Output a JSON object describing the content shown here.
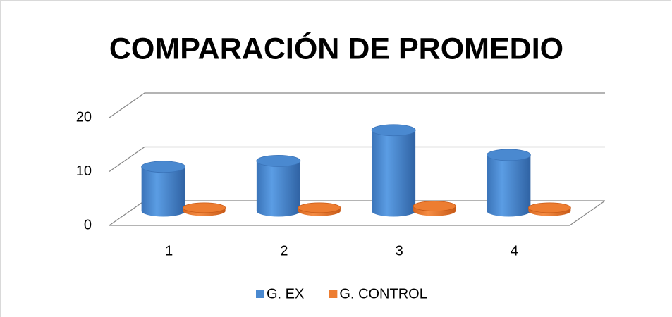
{
  "chart_data": {
    "type": "bar3d",
    "title": "COMPARACIÓN DE PROMEDIO",
    "categories": [
      "1",
      "2",
      "3",
      "4"
    ],
    "series": [
      {
        "name": "G. EX",
        "color": "#4a89d0",
        "values": [
          8.2,
          9.3,
          15,
          10.4
        ]
      },
      {
        "name": "G. CONTROL",
        "color": "#ed7d31",
        "values": [
          0.6,
          0.6,
          0.9,
          0.6
        ]
      }
    ],
    "ylim": [
      0,
      20
    ],
    "yticks": [
      0,
      10,
      20
    ],
    "grid": true
  }
}
